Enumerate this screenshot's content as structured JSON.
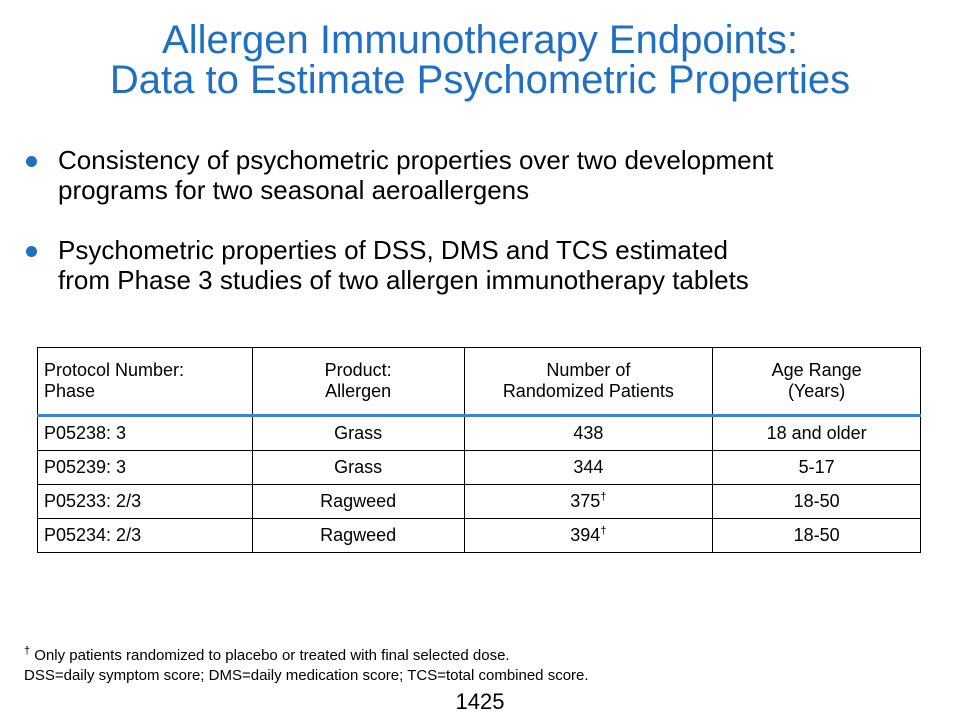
{
  "title": {
    "line1": "Allergen Immunotherapy Endpoints:",
    "line2": "Data to Estimate Psychometric Properties"
  },
  "bullets": [
    {
      "line1": "Consistency of psychometric properties over two development",
      "line2": "programs for two seasonal aeroallergens"
    },
    {
      "line1": "Psychometric properties of DSS, DMS and TCS estimated",
      "line2": "from Phase 3 studies of two allergen immunotherapy tablets"
    }
  ],
  "table": {
    "headers": [
      {
        "line1": "Protocol Number:",
        "line2": "Phase"
      },
      {
        "line1": "Product:",
        "line2": "Allergen"
      },
      {
        "line1": "Number of",
        "line2": "Randomized Patients"
      },
      {
        "line1": "Age Range",
        "line2": "(Years)"
      }
    ],
    "rows": [
      {
        "protocol": "P05238: 3",
        "allergen": "Grass",
        "patients": "438",
        "mark": "",
        "age": "18 and older"
      },
      {
        "protocol": "P05239: 3",
        "allergen": "Grass",
        "patients": "344",
        "mark": "",
        "age": "5-17"
      },
      {
        "protocol": "P05233: 2/3",
        "allergen": "Ragweed",
        "patients": "375",
        "mark": "†",
        "age": "18-50"
      },
      {
        "protocol": "P05234: 2/3",
        "allergen": "Ragweed",
        "patients": "394",
        "mark": "†",
        "age": "18-50"
      }
    ]
  },
  "footnotes": {
    "mark": "†",
    "line1": "Only patients randomized to placebo or treated with final selected dose.",
    "line2": "DSS=daily symptom score; DMS=daily medication score; TCS=total combined score."
  },
  "page_number": "1425",
  "colors": {
    "accent": "#1f6fc5",
    "header_rule": "#3a86d4"
  }
}
